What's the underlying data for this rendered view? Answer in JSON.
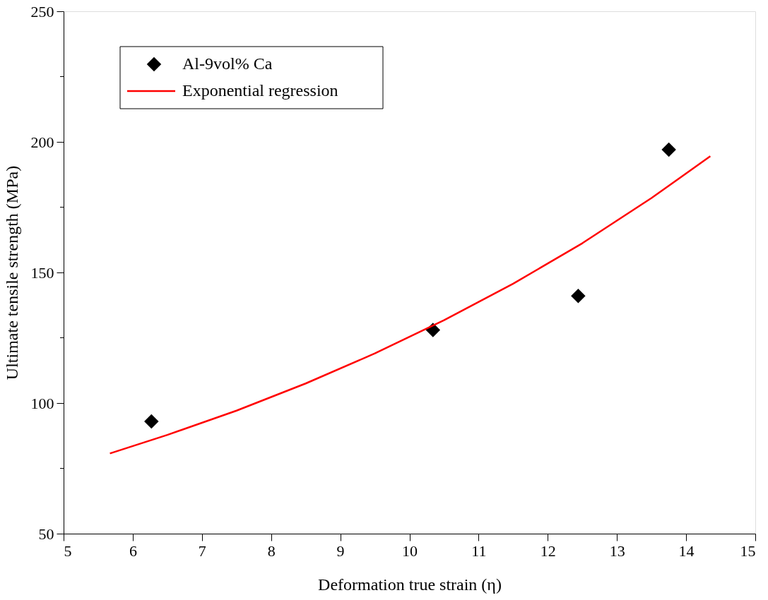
{
  "chart_data": {
    "type": "scatter",
    "xlabel": "Deformation true strain (η)",
    "ylabel": "Ultimate tensile strength (MPa)",
    "xlim": [
      5,
      15
    ],
    "ylim": [
      50,
      250
    ],
    "xticks": [
      5,
      6,
      7,
      8,
      9,
      10,
      11,
      12,
      13,
      14,
      15
    ],
    "yticks": [
      50,
      100,
      150,
      200,
      250
    ],
    "grid": false,
    "legend": "top left",
    "series": [
      {
        "name": "Al-9vol% Ca",
        "marker": "diamond",
        "color": "#000000",
        "x": [
          6.27,
          10.34,
          12.44,
          13.75
        ],
        "values": [
          93,
          128,
          141,
          197
        ]
      },
      {
        "name": "Exponential regression",
        "type": "line",
        "marker": "none",
        "color": "#ff0000",
        "line_style": "solid",
        "x": [
          5.67,
          6.5,
          7.5,
          8.5,
          9.5,
          10.5,
          11.5,
          12.5,
          13.5,
          14.35
        ],
        "values": [
          80.7,
          87.8,
          97.1,
          107.5,
          119.0,
          131.7,
          145.7,
          161.2,
          178.5,
          194.5
        ]
      }
    ]
  }
}
